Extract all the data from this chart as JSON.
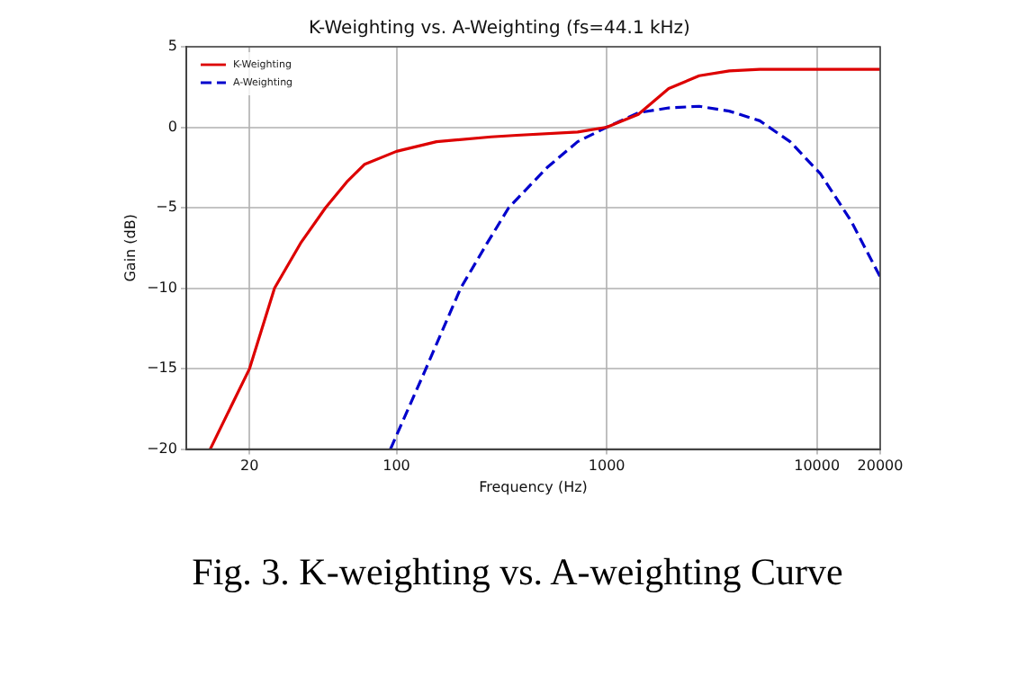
{
  "chart_data": {
    "type": "line",
    "title": "K-Weighting vs. A-Weighting (fs=44.1 kHz)",
    "xlabel": "Frequency (Hz)",
    "ylabel": "Gain (dB)",
    "log": "x",
    "xlim": [
      10,
      20000
    ],
    "xticks": [
      20,
      100,
      1000,
      10000,
      20000
    ],
    "ylim": [
      -20,
      5
    ],
    "yticks": [
      -20,
      -15,
      -10,
      -5,
      0,
      5
    ],
    "grid": true,
    "legend": "top left",
    "marker": "none",
    "series": [
      {
        "name": "K-Weighting",
        "color": "#dd0000",
        "line_style": "solid",
        "x": [
          13,
          20,
          26.3,
          35,
          46,
          58,
          70.6,
          100,
          155,
          282,
          373,
          727,
          1000,
          1413,
          1972,
          2755,
          3830,
          5350,
          20000
        ],
        "values": [
          -20,
          -15,
          -10,
          -7.2,
          -5,
          -3.4,
          -2.3,
          -1.5,
          -0.9,
          -0.6,
          -0.5,
          -0.3,
          0,
          0.8,
          2.4,
          3.2,
          3.5,
          3.6,
          3.6
        ]
      },
      {
        "name": "A-Weighting",
        "color": "#0000cc",
        "line_style": "dashed",
        "x": [
          93.6,
          136,
          202,
          270,
          342,
          521,
          727,
          1000,
          1413,
          1972,
          2755,
          3830,
          5350,
          7460,
          10400,
          14500,
          20000
        ],
        "values": [
          -20,
          -15.2,
          -10,
          -7.2,
          -5,
          -2.5,
          -0.9,
          0,
          0.9,
          1.2,
          1.3,
          1,
          0.4,
          -0.9,
          -2.9,
          -5.8,
          -9.3
        ]
      }
    ],
    "annotations": [
      "Fig. 3. K-weighting vs. A-weighting Curve"
    ]
  }
}
